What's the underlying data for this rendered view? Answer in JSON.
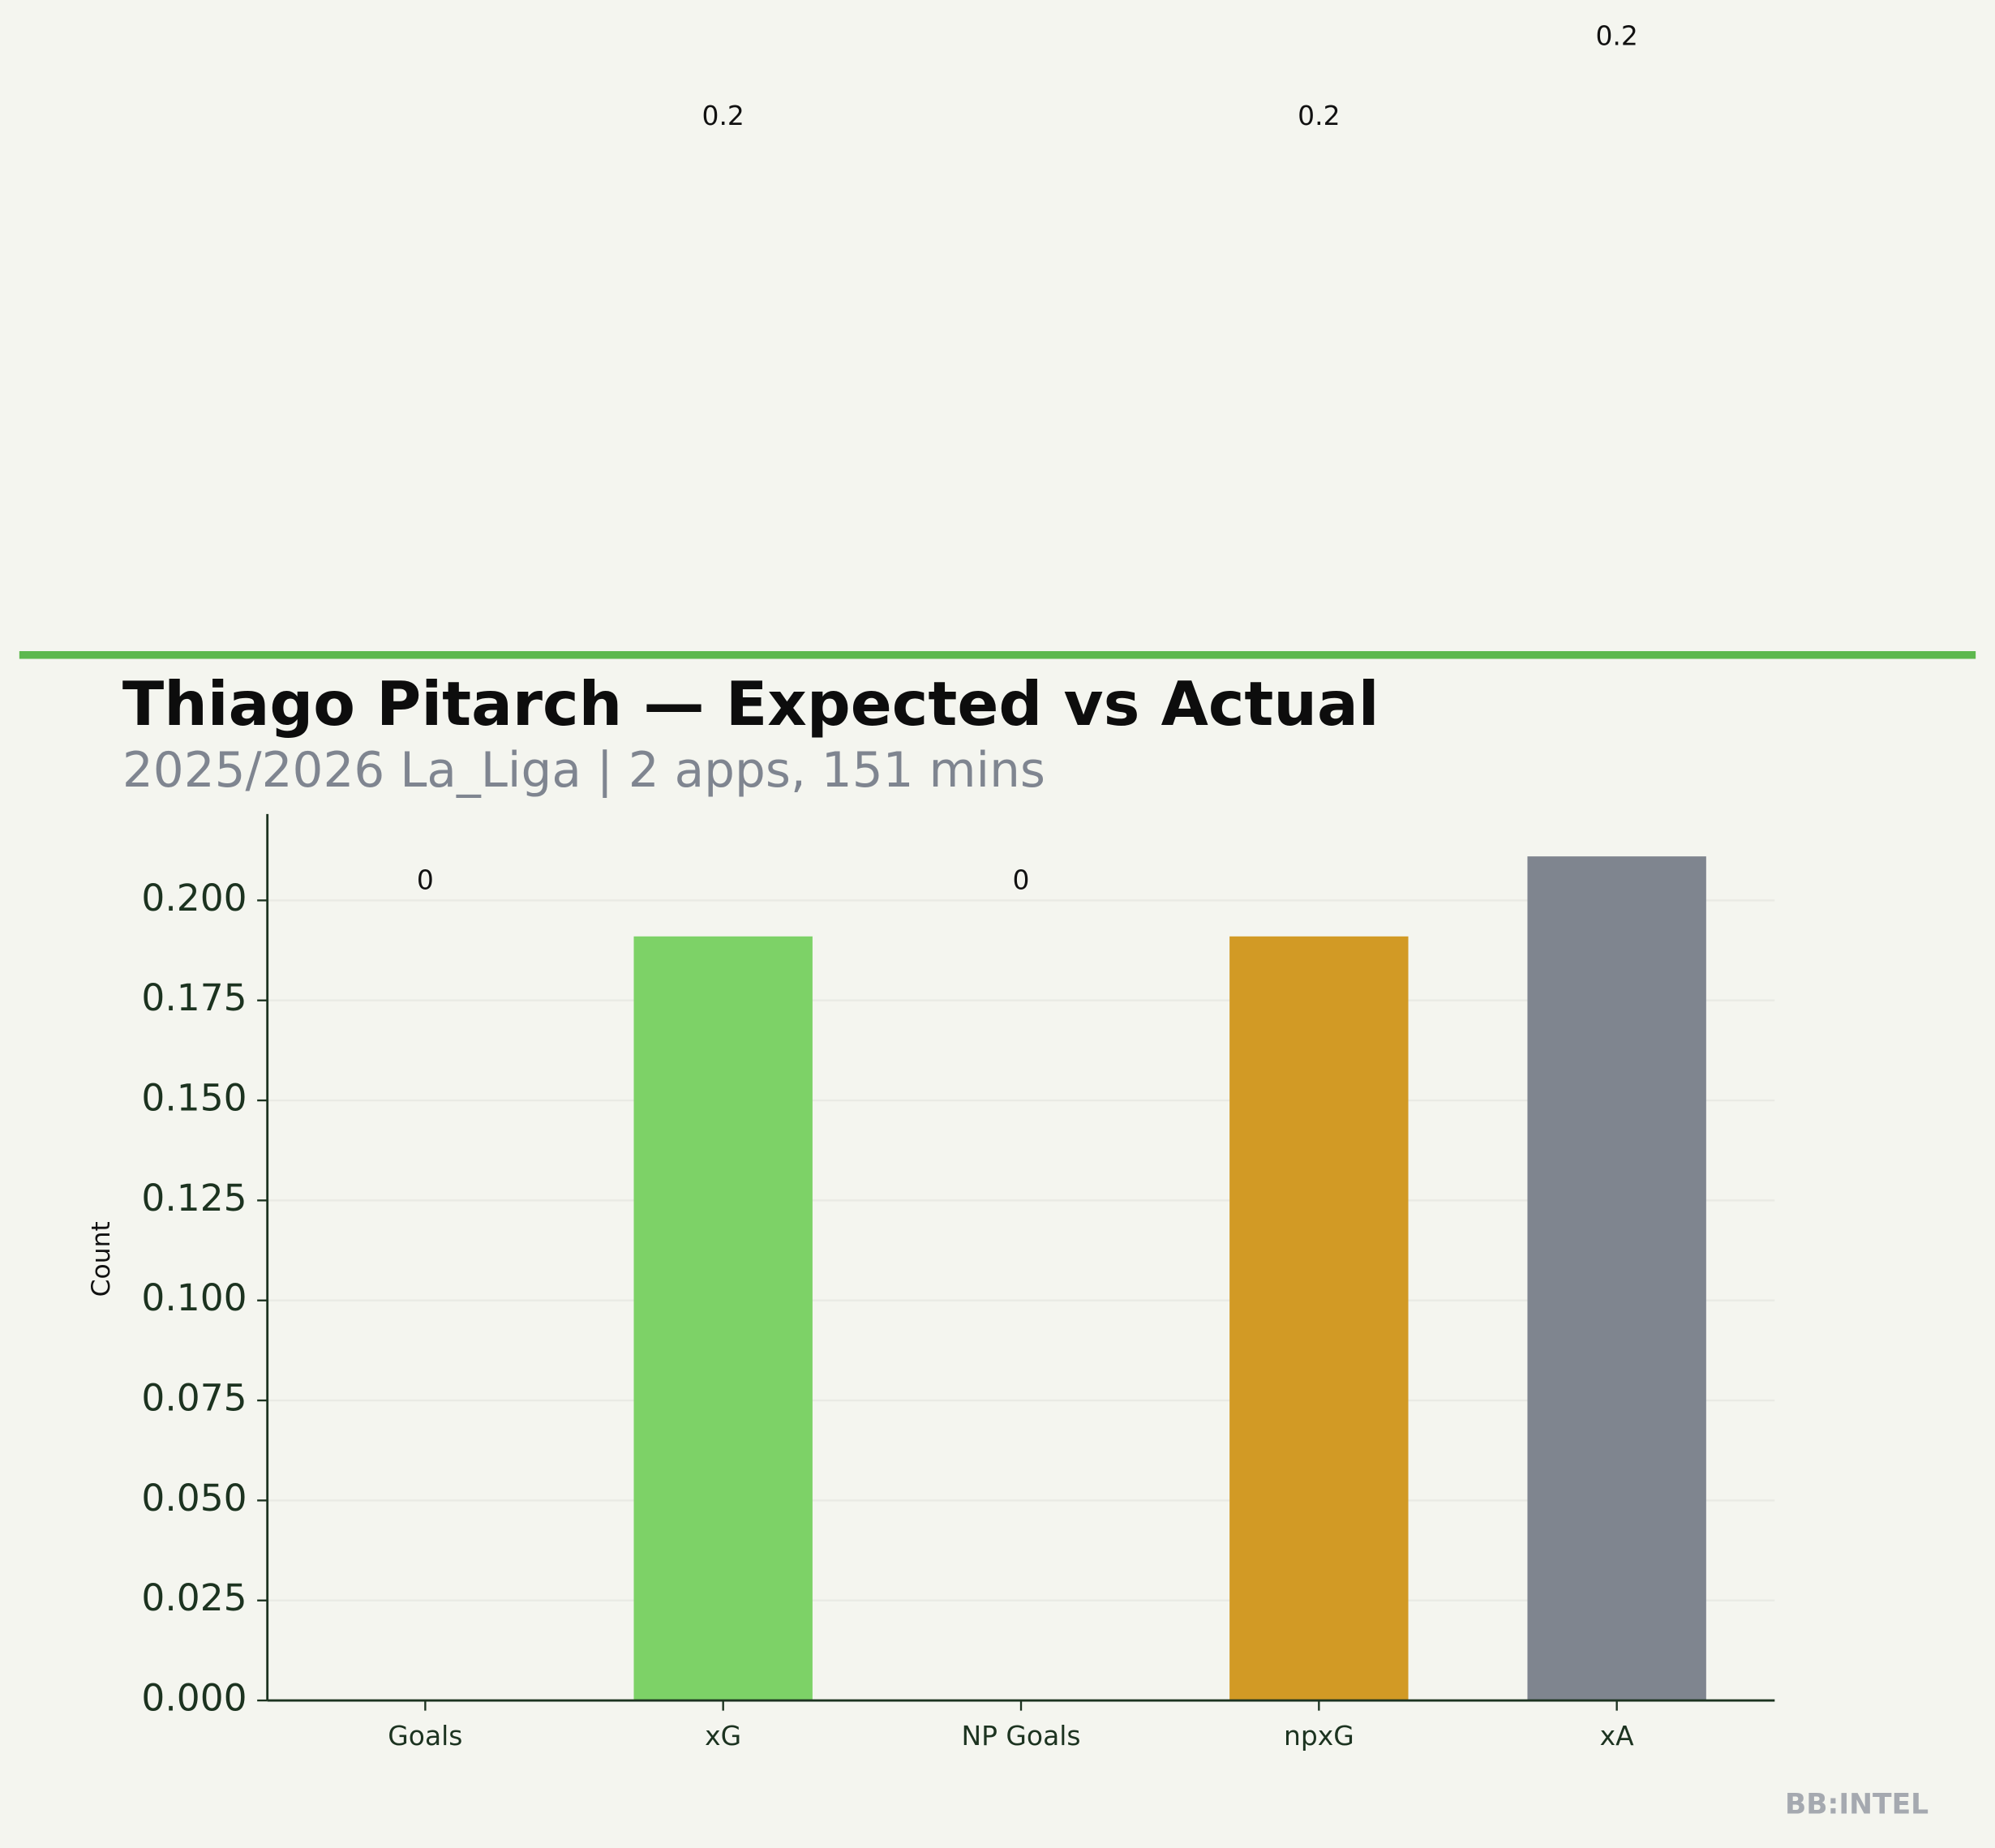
{
  "chart_data": {
    "type": "bar",
    "title": "Thiago Pitarch — Expected vs Actual",
    "subtitle": "2025/2026 La_Liga | 2 apps, 151 mins",
    "ylabel": "Count",
    "watermark": "BB:INTEL",
    "categories": [
      "Goals",
      "xG",
      "NP Goals",
      "npxG",
      "xA"
    ],
    "values": [
      0,
      0.191,
      0,
      0.191,
      0.211
    ],
    "value_labels": [
      "0",
      "0.2",
      "0",
      "0.2",
      "0.2"
    ],
    "colors": [
      "#5db84e",
      "#7dd267",
      "#c98a1a",
      "#d29a25",
      "#7f858f"
    ],
    "ylim": [
      0,
      0.2216
    ],
    "yticks": [
      {
        "value": 0,
        "label": "0.000"
      },
      {
        "value": 0.025,
        "label": "0.025"
      },
      {
        "value": 0.05,
        "label": "0.050"
      },
      {
        "value": 0.075,
        "label": "0.075"
      },
      {
        "value": 0.1,
        "label": "0.100"
      },
      {
        "value": 0.125,
        "label": "0.125"
      },
      {
        "value": 0.15,
        "label": "0.150"
      },
      {
        "value": 0.175,
        "label": "0.175"
      },
      {
        "value": 0.2,
        "label": "0.200"
      }
    ],
    "grid": true
  }
}
